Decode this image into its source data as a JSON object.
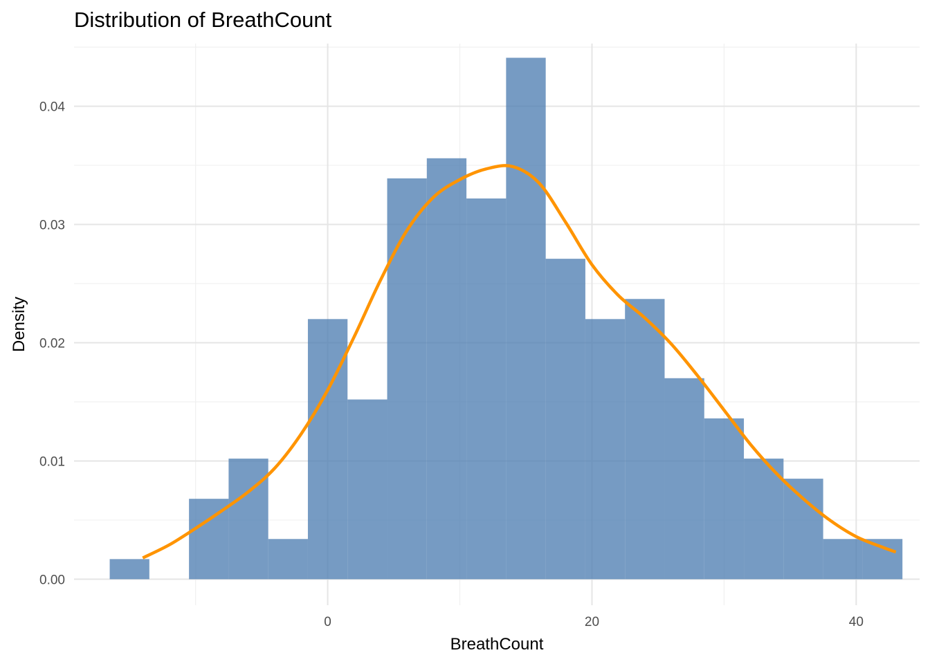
{
  "chart_data": {
    "type": "bar",
    "title": "Distribution of BreathCount",
    "xlabel": "BreathCount",
    "ylabel": "Density",
    "bin_width": 3,
    "bins": [
      {
        "x0": -16.5,
        "x1": -13.5,
        "density": 0.0017
      },
      {
        "x0": -13.5,
        "x1": -10.5,
        "density": 0.0
      },
      {
        "x0": -10.5,
        "x1": -7.5,
        "density": 0.0068
      },
      {
        "x0": -7.5,
        "x1": -4.5,
        "density": 0.0102
      },
      {
        "x0": -4.5,
        "x1": -1.5,
        "density": 0.0034
      },
      {
        "x0": -1.5,
        "x1": 1.5,
        "density": 0.022
      },
      {
        "x0": 1.5,
        "x1": 4.5,
        "density": 0.0152
      },
      {
        "x0": 4.5,
        "x1": 7.5,
        "density": 0.0339
      },
      {
        "x0": 7.5,
        "x1": 10.5,
        "density": 0.0356
      },
      {
        "x0": 10.5,
        "x1": 13.5,
        "density": 0.0322
      },
      {
        "x0": 13.5,
        "x1": 16.5,
        "density": 0.0441
      },
      {
        "x0": 16.5,
        "x1": 19.5,
        "density": 0.0271
      },
      {
        "x0": 19.5,
        "x1": 22.5,
        "density": 0.022
      },
      {
        "x0": 22.5,
        "x1": 25.5,
        "density": 0.0237
      },
      {
        "x0": 25.5,
        "x1": 28.5,
        "density": 0.017
      },
      {
        "x0": 28.5,
        "x1": 31.5,
        "density": 0.0136
      },
      {
        "x0": 31.5,
        "x1": 34.5,
        "density": 0.0102
      },
      {
        "x0": 34.5,
        "x1": 37.5,
        "density": 0.0085
      },
      {
        "x0": 37.5,
        "x1": 40.5,
        "density": 0.0034
      },
      {
        "x0": 40.5,
        "x1": 43.5,
        "density": 0.0034
      }
    ],
    "density_curve": {
      "x": [
        -14,
        -12,
        -10,
        -8,
        -6,
        -4,
        -2,
        0,
        2,
        4,
        6,
        8,
        10,
        12,
        14,
        16,
        18,
        20,
        22,
        24,
        26,
        28,
        30,
        32,
        34,
        36,
        38,
        40,
        42,
        43
      ],
      "y": [
        0.0018,
        0.0029,
        0.0043,
        0.0058,
        0.0074,
        0.0094,
        0.0123,
        0.016,
        0.0205,
        0.0253,
        0.0295,
        0.0323,
        0.0338,
        0.0347,
        0.0349,
        0.0335,
        0.0302,
        0.0266,
        0.024,
        0.0221,
        0.0199,
        0.0172,
        0.0143,
        0.0114,
        0.0089,
        0.0068,
        0.005,
        0.0036,
        0.0027,
        0.0023
      ]
    },
    "xlim": [
      -19.2,
      44.8
    ],
    "ylim": [
      -0.0022,
      0.0453
    ],
    "x_ticks": [
      0,
      20,
      40
    ],
    "x_tick_labels": [
      "0",
      "20",
      "40"
    ],
    "x_minor_ticks": [
      -10,
      10,
      30
    ],
    "y_ticks": [
      0.0,
      0.01,
      0.02,
      0.03,
      0.04
    ],
    "y_tick_labels": [
      "0.00",
      "0.01",
      "0.02",
      "0.03",
      "0.04"
    ],
    "y_minor_ticks": [
      0.005,
      0.015,
      0.025,
      0.035,
      0.045
    ],
    "grid": true,
    "bar_color": "#4f7fb2",
    "bar_opacity": 0.78,
    "curve_color": "#ff9400"
  }
}
